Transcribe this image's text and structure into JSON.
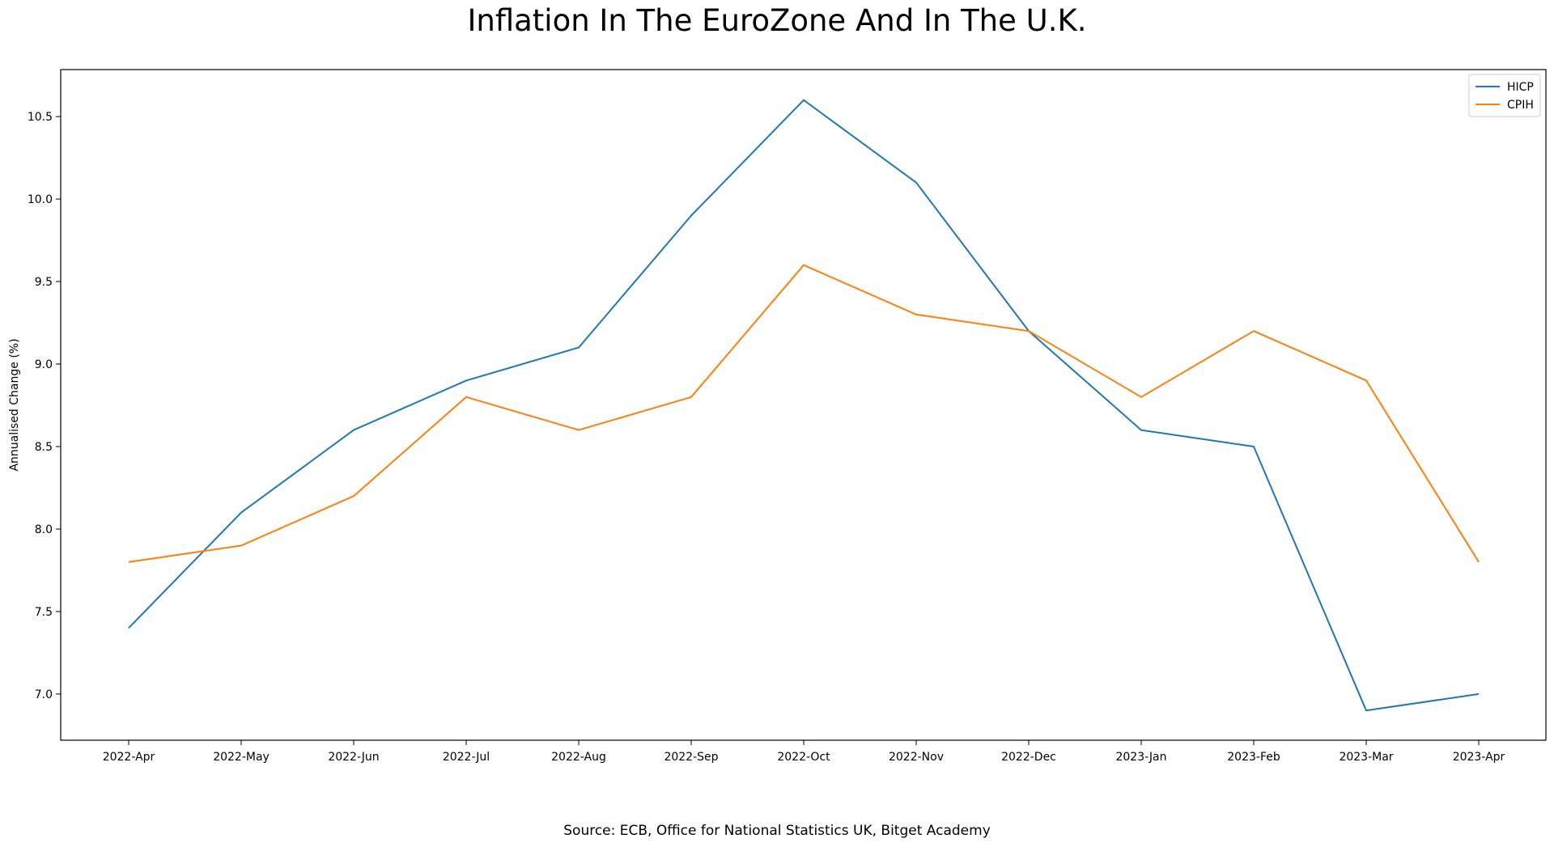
{
  "title": "Inflation In The EuroZone And In The U.K.",
  "source": "Source: ECB, Office for National Statistics UK, Bitget Academy",
  "chart_data": {
    "type": "line",
    "title": "Inflation In The EuroZone And In The U.K.",
    "xlabel": "",
    "ylabel": "Annualised Change (%)",
    "x": [
      "2022-Apr",
      "2022-May",
      "2022-Jun",
      "2022-Jul",
      "2022-Aug",
      "2022-Sep",
      "2022-Oct",
      "2022-Nov",
      "2022-Dec",
      "2023-Jan",
      "2023-Feb",
      "2023-Mar",
      "2023-Apr"
    ],
    "series": [
      {
        "name": "HICP",
        "color": "#1f77b4",
        "values": [
          7.4,
          8.1,
          8.6,
          8.9,
          9.1,
          9.9,
          10.6,
          10.1,
          9.2,
          8.6,
          8.5,
          6.9,
          7.0
        ]
      },
      {
        "name": "CPIH",
        "color": "#ff7f0e",
        "values": [
          7.8,
          7.9,
          8.2,
          8.8,
          8.6,
          8.8,
          9.6,
          9.3,
          9.2,
          8.8,
          9.2,
          8.9,
          7.8
        ]
      }
    ],
    "yticks": [
      "7.0",
      "7.5",
      "8.0",
      "8.5",
      "9.0",
      "9.5",
      "10.0",
      "10.5"
    ],
    "ylim": [
      6.72,
      10.785
    ],
    "grid": false,
    "legend": "top-right"
  }
}
